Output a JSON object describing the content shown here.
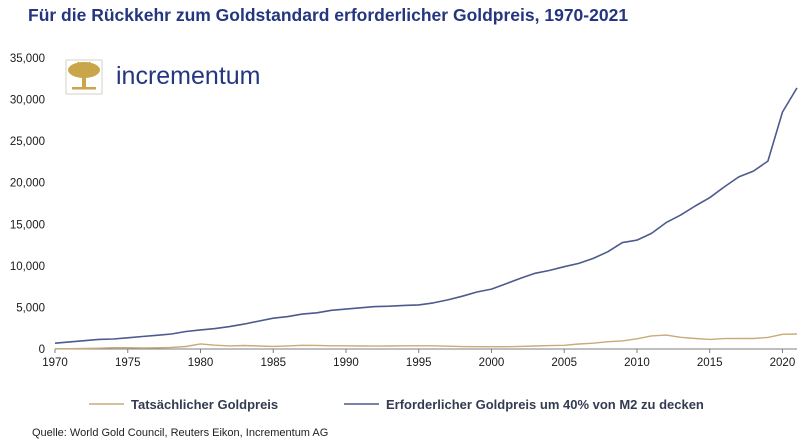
{
  "logo": {
    "text": "incrementum",
    "colors": {
      "mark": "#c9a64a",
      "text": "#24367f"
    }
  },
  "source": "Quelle: World Gold Council, Reuters Eikon, Incrementum AG",
  "chart_data": {
    "type": "line",
    "title": "Für die Rückkehr zum Goldstandard erforderlicher Goldpreis, 1970-2021",
    "xlabel": "",
    "ylabel": "",
    "xlim": [
      1970,
      2021
    ],
    "ylim": [
      0,
      35000
    ],
    "xticks": [
      1970,
      1975,
      1980,
      1985,
      1990,
      1995,
      2000,
      2005,
      2010,
      2015,
      2020
    ],
    "yticks": [
      0,
      5000,
      10000,
      15000,
      20000,
      25000,
      30000,
      35000
    ],
    "ytick_labels": [
      "0",
      "5,000",
      "10,000",
      "15,000",
      "20,000",
      "25,000",
      "30,000",
      "35,000"
    ],
    "grid": false,
    "legend_position": "bottom",
    "x": [
      1970,
      1971,
      1972,
      1973,
      1974,
      1975,
      1976,
      1977,
      1978,
      1979,
      1980,
      1981,
      1982,
      1983,
      1984,
      1985,
      1986,
      1987,
      1988,
      1989,
      1990,
      1991,
      1992,
      1993,
      1994,
      1995,
      1996,
      1997,
      1998,
      1999,
      2000,
      2001,
      2002,
      2003,
      2004,
      2005,
      2006,
      2007,
      2008,
      2009,
      2010,
      2011,
      2012,
      2013,
      2014,
      2015,
      2016,
      2017,
      2018,
      2019,
      2020,
      2021
    ],
    "series": [
      {
        "name": "Tatsächlicher Goldpreis",
        "color": "#c8ab78",
        "values": [
          36,
          41,
          58,
          97,
          154,
          161,
          125,
          148,
          193,
          306,
          615,
          460,
          376,
          424,
          361,
          317,
          368,
          447,
          437,
          381,
          383,
          362,
          344,
          360,
          384,
          384,
          388,
          331,
          294,
          279,
          279,
          271,
          310,
          363,
          409,
          444,
          603,
          695,
          872,
          972,
          1225,
          1572,
          1669,
          1411,
          1266,
          1160,
          1251,
          1257,
          1268,
          1393,
          1770,
          1799
        ]
      },
      {
        "name": "Erforderlicher Goldpreis um 40% von M2 zu decken",
        "color": "#4d5a8e",
        "values": [
          700,
          850,
          1000,
          1150,
          1200,
          1350,
          1500,
          1650,
          1800,
          2100,
          2300,
          2450,
          2700,
          3000,
          3350,
          3700,
          3900,
          4200,
          4350,
          4650,
          4800,
          4950,
          5100,
          5150,
          5250,
          5300,
          5550,
          5900,
          6350,
          6850,
          7200,
          7850,
          8500,
          9100,
          9450,
          9900,
          10300,
          10900,
          11700,
          12800,
          13100,
          13900,
          15200,
          16100,
          17200,
          18200,
          19500,
          20700,
          21400,
          22600,
          28500,
          31400
        ]
      }
    ]
  }
}
